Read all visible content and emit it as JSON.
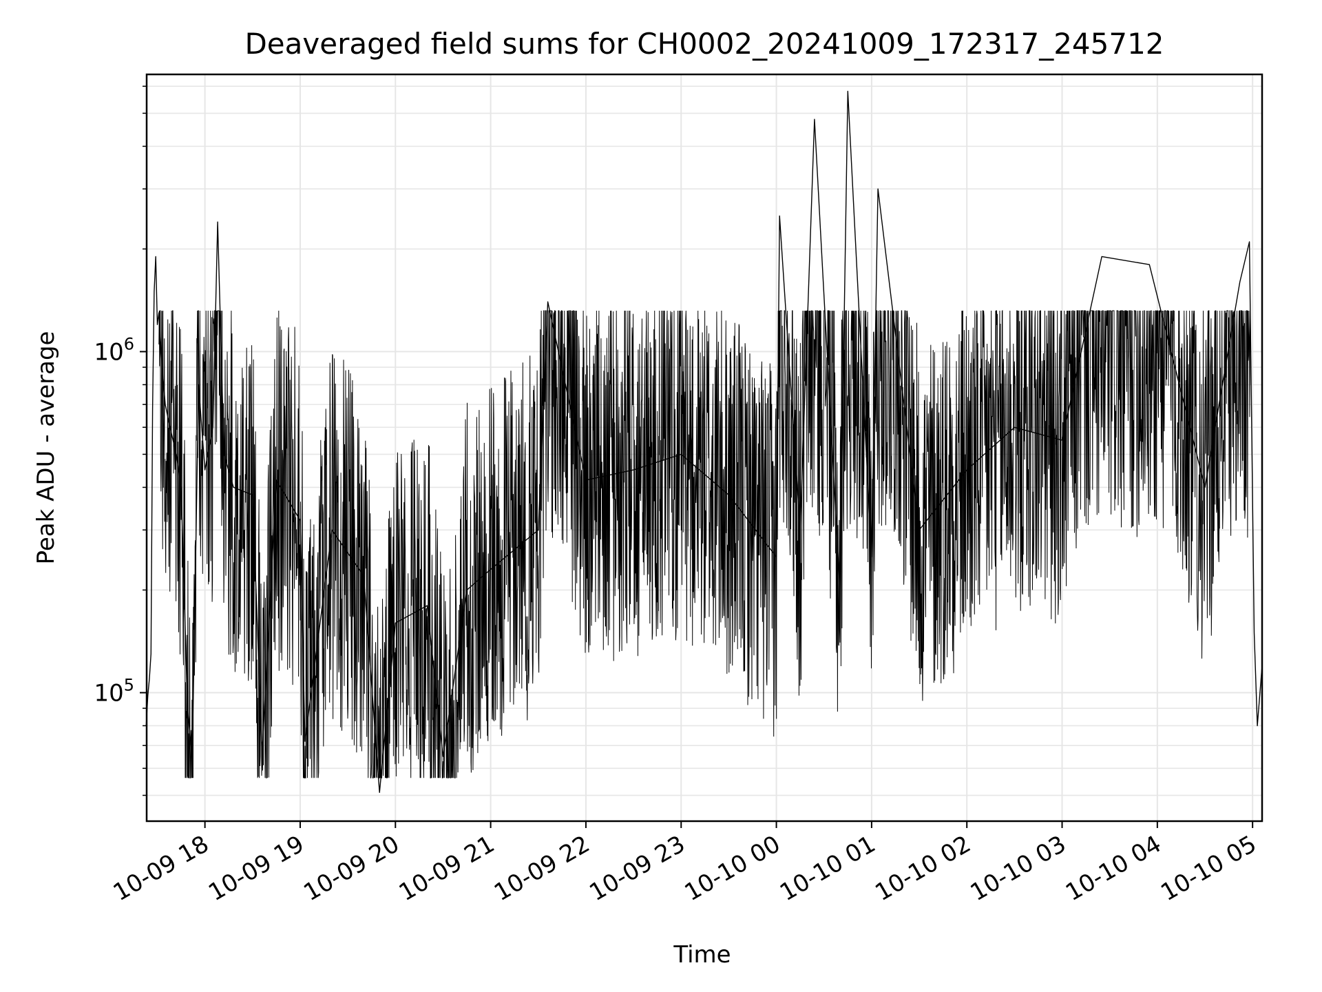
{
  "chart_data": {
    "type": "line",
    "title": "Deaveraged field sums for CH0002_20241009_172317_245712",
    "xlabel": "Time",
    "ylabel": "Peak ADU - average",
    "yscale": "log",
    "ylim": [
      42000,
      6500000
    ],
    "xlim": [
      "2024-10-09 17:23:17",
      "2024-10-10 05:06:00"
    ],
    "grid": true,
    "legend": "none",
    "line_color": "#000000",
    "grid_color": "#e6e6e6",
    "x_ticks": [
      {
        "t": "2024-10-09 18:00",
        "label": "10-09 18"
      },
      {
        "t": "2024-10-09 19:00",
        "label": "10-09 19"
      },
      {
        "t": "2024-10-09 20:00",
        "label": "10-09 20"
      },
      {
        "t": "2024-10-09 21:00",
        "label": "10-09 21"
      },
      {
        "t": "2024-10-09 22:00",
        "label": "10-09 22"
      },
      {
        "t": "2024-10-09 23:00",
        "label": "10-09 23"
      },
      {
        "t": "2024-10-10 00:00",
        "label": "10-10 00"
      },
      {
        "t": "2024-10-10 01:00",
        "label": "10-10 01"
      },
      {
        "t": "2024-10-10 02:00",
        "label": "10-10 02"
      },
      {
        "t": "2024-10-10 03:00",
        "label": "10-10 03"
      },
      {
        "t": "2024-10-10 04:00",
        "label": "10-10 04"
      },
      {
        "t": "2024-10-10 05:00",
        "label": "10-10 05"
      }
    ],
    "y_major_ticks": [
      {
        "value": 100000,
        "base": "10",
        "exp": "5"
      },
      {
        "value": 1000000,
        "base": "10",
        "exp": "6"
      }
    ],
    "series": [
      {
        "points": [
          [
            "2024-10-09 17:23",
            80000
          ],
          [
            "2024-10-09 17:24",
            98000
          ],
          [
            "2024-10-09 17:25",
            110000
          ],
          [
            "2024-10-09 17:26",
            130000
          ],
          [
            "2024-10-09 17:27",
            680000
          ],
          [
            "2024-10-09 17:28",
            1500000
          ],
          [
            "2024-10-09 17:29",
            1900000
          ],
          [
            "2024-10-09 17:30",
            1200000
          ],
          [
            "2024-10-09 17:31",
            1300000
          ],
          [
            "2024-10-09 17:33",
            900000
          ],
          [
            "2024-10-09 17:35",
            700000
          ],
          [
            "2024-10-09 17:38",
            600000
          ],
          [
            "2024-10-09 17:42",
            500000
          ],
          [
            "2024-10-09 17:45",
            400000
          ],
          [
            "2024-10-09 17:49",
            90000
          ],
          [
            "2024-10-09 17:52",
            64000
          ],
          [
            "2024-10-09 17:56",
            800000
          ],
          [
            "2024-10-09 18:00",
            450000
          ],
          [
            "2024-10-09 18:05",
            600000
          ],
          [
            "2024-10-09 18:08",
            2400000
          ],
          [
            "2024-10-09 18:12",
            500000
          ],
          [
            "2024-10-09 18:18",
            400000
          ],
          [
            "2024-10-09 18:30",
            380000
          ],
          [
            "2024-10-09 18:36",
            66000
          ],
          [
            "2024-10-09 18:45",
            420000
          ],
          [
            "2024-10-09 19:00",
            320000
          ],
          [
            "2024-10-09 19:03",
            72000
          ],
          [
            "2024-10-09 19:20",
            300000
          ],
          [
            "2024-10-09 19:40",
            220000
          ],
          [
            "2024-10-09 19:50",
            51000
          ],
          [
            "2024-10-09 20:00",
            160000
          ],
          [
            "2024-10-09 20:20",
            180000
          ],
          [
            "2024-10-09 20:30",
            65000
          ],
          [
            "2024-10-09 20:45",
            200000
          ],
          [
            "2024-10-09 21:00",
            230000
          ],
          [
            "2024-10-09 21:30",
            300000
          ],
          [
            "2024-10-09 21:36",
            1400000
          ],
          [
            "2024-10-09 22:00",
            420000
          ],
          [
            "2024-10-09 22:30",
            450000
          ],
          [
            "2024-10-09 23:00",
            500000
          ],
          [
            "2024-10-09 23:30",
            380000
          ],
          [
            "2024-10-10 00:00",
            250000
          ],
          [
            "2024-10-10 00:02",
            2500000
          ],
          [
            "2024-10-10 00:15",
            300000
          ],
          [
            "2024-10-10 00:24",
            4800000
          ],
          [
            "2024-10-10 00:40",
            200000
          ],
          [
            "2024-10-10 00:45",
            5800000
          ],
          [
            "2024-10-10 01:00",
            250000
          ],
          [
            "2024-10-10 01:04",
            3000000
          ],
          [
            "2024-10-10 01:30",
            300000
          ],
          [
            "2024-10-10 02:00",
            450000
          ],
          [
            "2024-10-10 02:30",
            600000
          ],
          [
            "2024-10-10 03:00",
            550000
          ],
          [
            "2024-10-10 03:25",
            1900000
          ],
          [
            "2024-10-10 03:55",
            1800000
          ],
          [
            "2024-10-10 04:30",
            400000
          ],
          [
            "2024-10-10 04:52",
            1600000
          ],
          [
            "2024-10-10 04:58",
            2100000
          ],
          [
            "2024-10-10 05:01",
            150000
          ],
          [
            "2024-10-10 05:03",
            80000
          ],
          [
            "2024-10-10 05:06",
            120000
          ]
        ]
      }
    ]
  }
}
